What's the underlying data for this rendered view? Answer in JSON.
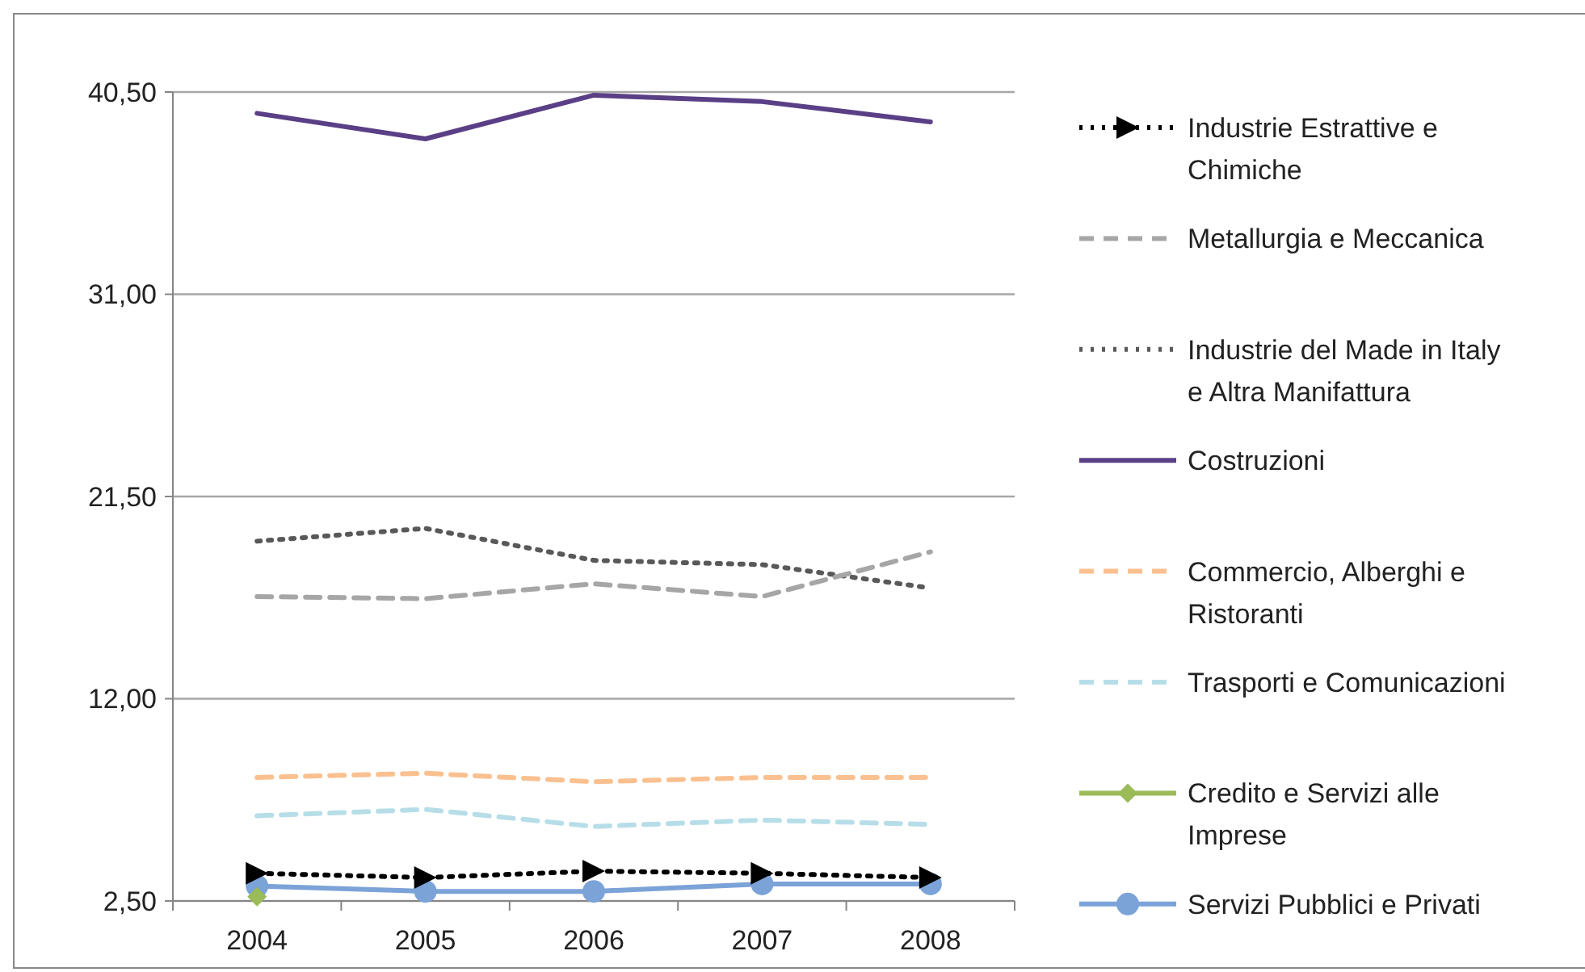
{
  "chart_data": {
    "type": "line",
    "categories": [
      "2004",
      "2005",
      "2006",
      "2007",
      "2008"
    ],
    "ylim": [
      2.5,
      40.5
    ],
    "yticks": [
      {
        "value": 2.5,
        "label": "2,50"
      },
      {
        "value": 12,
        "label": "12,00"
      },
      {
        "value": 21.5,
        "label": "21,50"
      },
      {
        "value": 31,
        "label": "31,00"
      },
      {
        "value": 40.5,
        "label": "40,50"
      }
    ],
    "grid": "y",
    "legend": "right",
    "series": [
      {
        "name": "Industrie Estrattive e Chimiche",
        "color": "#000000",
        "line_style": "dotted",
        "marker": "triangle",
        "values": [
          3.8,
          3.6,
          3.9,
          3.8,
          3.6
        ]
      },
      {
        "name": "Metallurgia e Meccanica",
        "color": "#a6a6a6",
        "line_style": "dashed",
        "marker": "none",
        "values": [
          16.8,
          16.7,
          17.4,
          16.8,
          18.9
        ]
      },
      {
        "name": "Industrie del Made in Italy e Altra Manifattura",
        "color": "#595959",
        "line_style": "dotted",
        "marker": "none",
        "values": [
          19.4,
          20.0,
          18.5,
          18.3,
          17.2
        ]
      },
      {
        "name": "Costruzioni",
        "color": "#5b3f86",
        "line_style": "solid",
        "marker": "none",
        "values": [
          39.5,
          38.3,
          40.35,
          40.05,
          39.1
        ]
      },
      {
        "name": "Commercio, Alberghi e Ristoranti",
        "color": "#fac090",
        "line_style": "dashed",
        "marker": "none",
        "values": [
          8.3,
          8.5,
          8.1,
          8.3,
          8.3
        ]
      },
      {
        "name": "Trasporti e Comunicazioni",
        "color": "#b7dee8",
        "line_style": "dashed",
        "marker": "none",
        "values": [
          6.5,
          6.8,
          6.0,
          6.3,
          6.1
        ]
      },
      {
        "name": "Credito e Servizi alle Imprese",
        "color": "#9bbb59",
        "line_style": "solid",
        "marker": "diamond",
        "values": [
          2.7,
          null,
          null,
          null,
          null
        ]
      },
      {
        "name": "Servizi Pubblici e Privati",
        "color": "#7ba3d8",
        "line_style": "solid",
        "marker": "circle",
        "values": [
          3.2,
          2.95,
          2.95,
          3.3,
          3.3
        ]
      }
    ]
  }
}
